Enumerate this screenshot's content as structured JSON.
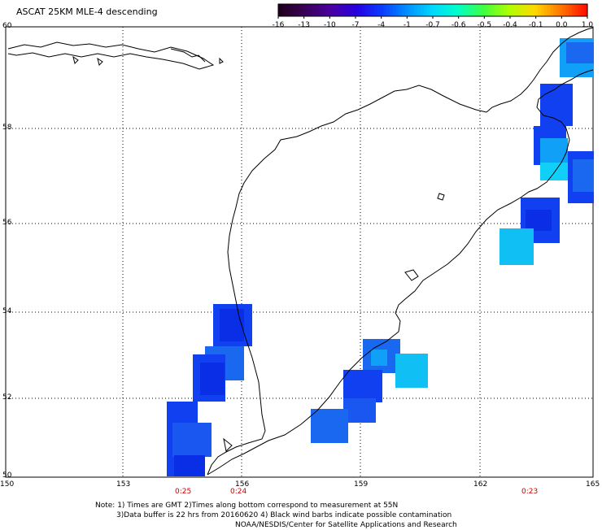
{
  "title": "ASCAT 25KM MLE-4 descending",
  "colorbar": {
    "labels": [
      "-16",
      "-13",
      "-10",
      "-7",
      "-4",
      "-1",
      "-0.7",
      "-0.6",
      "-0.5",
      "-0.4",
      "-0.1",
      "0.0",
      "1.0"
    ],
    "colors": [
      "#20001c",
      "#3a0058",
      "#4a00a0",
      "#2600e0",
      "#0a3cff",
      "#0090ff",
      "#00d8ff",
      "#00ffc8",
      "#40ff40",
      "#b0ff00",
      "#ffd800",
      "#ff7800",
      "#ff1000"
    ]
  },
  "axes": {
    "lon_labels": [
      "150",
      "153",
      "156",
      "159",
      "162",
      "165"
    ],
    "lat_labels": [
      "50",
      "52",
      "54",
      "56",
      "58",
      "60"
    ]
  },
  "time_labels": [
    "0:25",
    "0:24",
    "0:23"
  ],
  "notes": [
    "Note: 1) Times are GMT 2)Times along bottom correspond to measurement at 55N",
    "3)Data buffer is 22 hrs from 20160620 4) Black wind barbs indicate possible contamination",
    "NOAA/NESDIS/Center for Satellite Applications and Research"
  ],
  "data_colors": {
    "blue": "#1040f0",
    "mid": "#1a68f0",
    "cyan": "#10c0f4",
    "light": "#1ad8f8"
  }
}
